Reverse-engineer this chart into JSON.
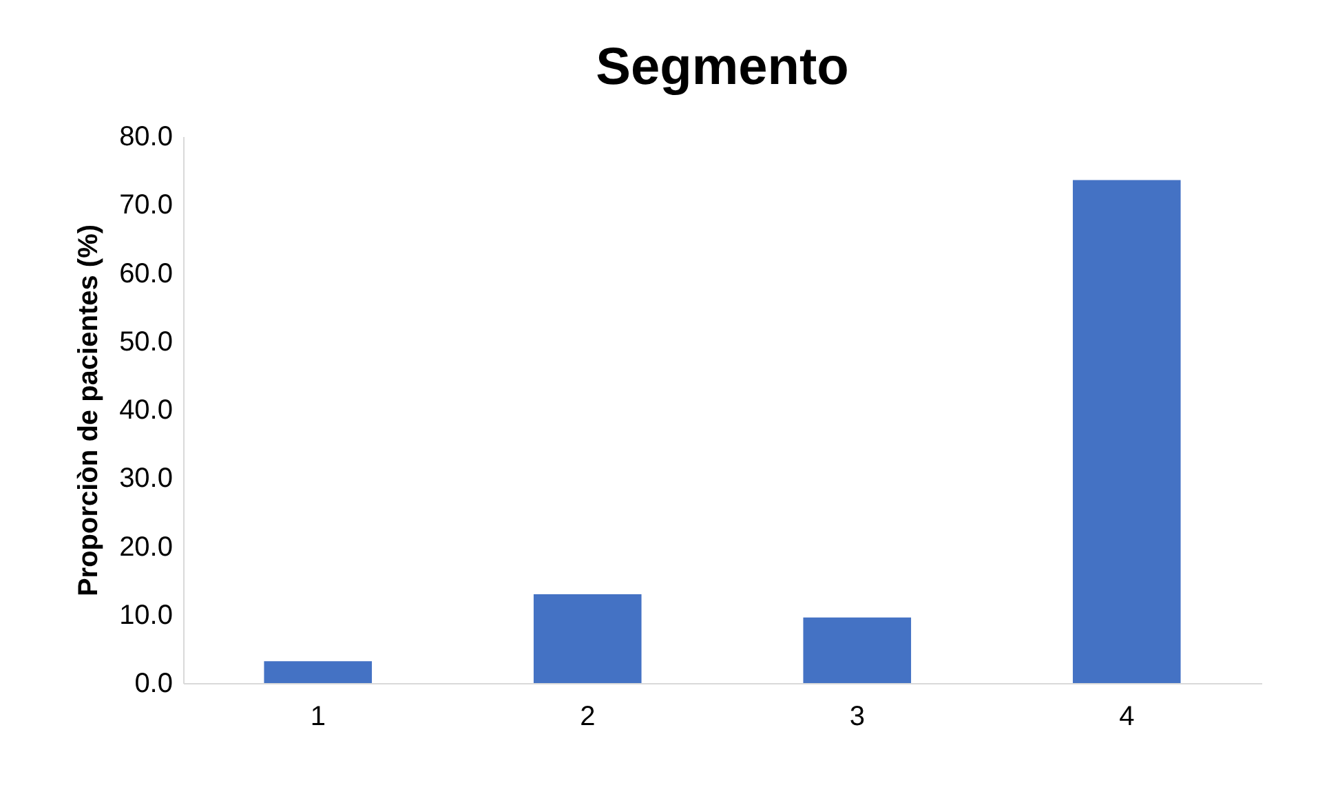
{
  "chart_data": {
    "type": "bar",
    "title": "Segmento",
    "ylabel": "Proporciòn de pacientes (%)",
    "categories": [
      "1",
      "2",
      "3",
      "4"
    ],
    "values": [
      3.2,
      13.0,
      9.6,
      73.6
    ],
    "color": "#4472c4",
    "ylim": [
      0,
      80
    ],
    "yticks": [
      {
        "value": 0,
        "label": "0.0"
      },
      {
        "value": 10,
        "label": "10.0"
      },
      {
        "value": 20,
        "label": "20.0"
      },
      {
        "value": 30,
        "label": "30.0"
      },
      {
        "value": 40,
        "label": "40.0"
      },
      {
        "value": 50,
        "label": "50.0"
      },
      {
        "value": 60,
        "label": "60.0"
      },
      {
        "value": 70,
        "label": "70.0"
      },
      {
        "value": 80,
        "label": "80.0"
      }
    ],
    "grid": false
  }
}
